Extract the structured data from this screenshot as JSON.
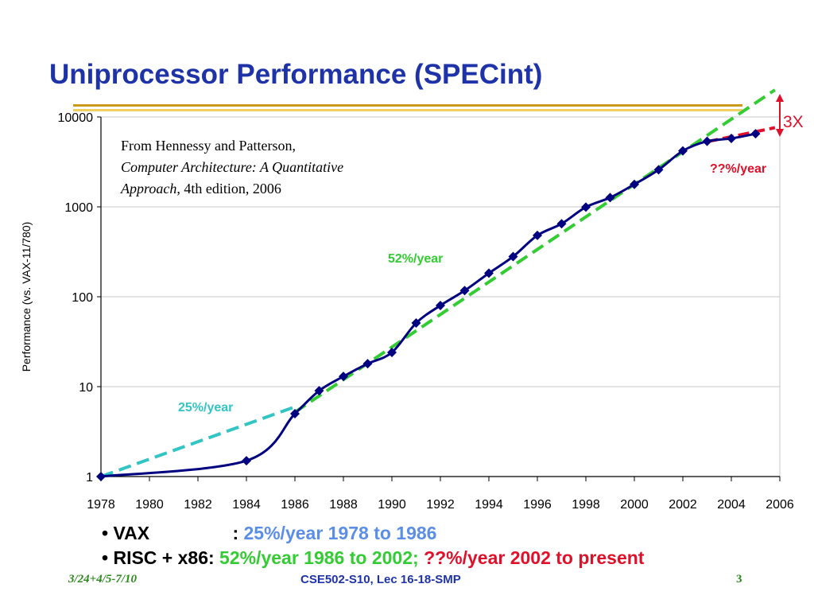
{
  "slide": {
    "title": "Uniprocessor Performance (SPECint)",
    "footer_left": "3/24+4/5-7/10",
    "footer_center": "CSE502-S10, Lec 16-18-SMP",
    "footer_right": "3"
  },
  "bullets": [
    {
      "bullet": "•",
      "label": "VAX",
      "sep": ":",
      "text": "25%/year 1978 to 1986",
      "text2": ""
    },
    {
      "bullet": "•",
      "label": "RISC + x86:",
      "sep": "",
      "text": "52%/year 1986 to 2002;",
      "text2": "??%/year 2002 to present"
    }
  ],
  "chart_data": {
    "type": "line",
    "title": "",
    "xlabel": "",
    "ylabel": "Performance (vs. VAX-11/780)",
    "xlim": [
      1978,
      2006
    ],
    "ylim": [
      1,
      10000
    ],
    "yscale": "log",
    "x_ticks": [
      "1978",
      "1980",
      "1982",
      "1984",
      "1986",
      "1988",
      "1990",
      "1992",
      "1994",
      "1996",
      "1998",
      "2000",
      "2002",
      "2004",
      "2006"
    ],
    "y_ticks": [
      "1",
      "10",
      "100",
      "1000",
      "10000"
    ],
    "grid": "horizontal",
    "series": [
      {
        "name": "",
        "color": "#000080",
        "marker": "diamond",
        "x": [
          1978,
          1984,
          1986,
          1987,
          1988,
          1989,
          1990,
          1991,
          1992,
          1993,
          1994,
          1995,
          1996,
          1997,
          1998,
          1999,
          2000,
          2001,
          2002,
          2003,
          2004,
          2005
        ],
        "y": [
          1,
          1.5,
          5,
          9,
          13,
          18,
          24,
          51,
          80,
          117,
          183,
          280,
          481,
          649,
          993,
          1267,
          1779,
          2584,
          4195,
          5364,
          5764,
          6505
        ]
      }
    ],
    "trend_lines": [
      {
        "label": "25%/year",
        "color": "#33c4c4",
        "x": [
          1978,
          1986
        ],
        "y": [
          1,
          5.96
        ]
      },
      {
        "label": "52%/year",
        "color": "#33cc33",
        "x": [
          1986,
          2005.8
        ],
        "y": [
          5.2,
          20000
        ]
      },
      {
        "label": "??%/year",
        "color": "#e0102a",
        "x": [
          2003,
          2005.8
        ],
        "y": [
          5300,
          7600
        ]
      }
    ],
    "annotations": [
      {
        "text": "From Hennessy and Patterson,",
        "style": "normal"
      },
      {
        "text": "Computer Architecture: A Quantitative",
        "style": "italic"
      },
      {
        "text": "Approach",
        "style": "italic",
        "suffix": ", 4th edition, 2006"
      },
      {
        "text": "3X",
        "color": "#e0102a"
      }
    ]
  }
}
